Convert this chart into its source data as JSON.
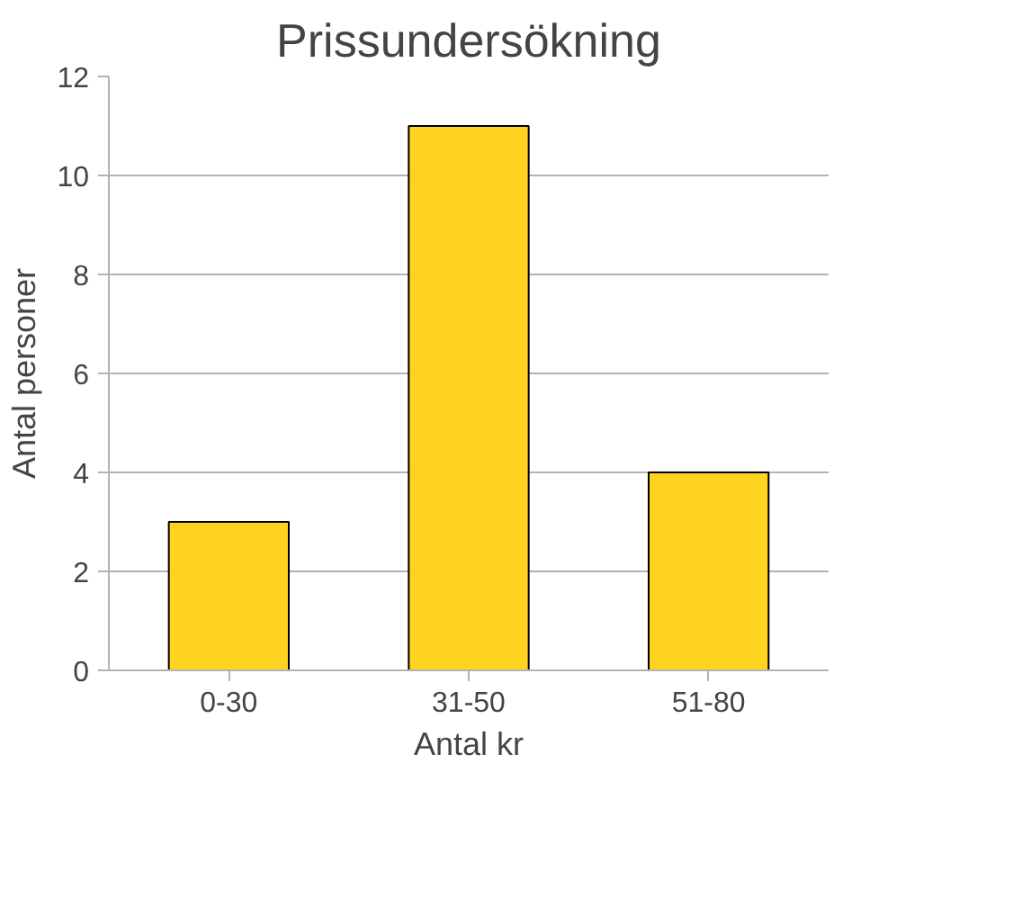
{
  "chart_data": {
    "type": "bar",
    "title": "Prissundersökning",
    "xlabel": "Antal kr",
    "ylabel": "Antal personer",
    "categories": [
      "0-30",
      "31-50",
      "51-80"
    ],
    "series": [
      {
        "color": "#ffd320",
        "values": [
          3,
          11,
          4
        ]
      }
    ],
    "ylim": [
      0,
      12
    ],
    "yticks": [
      0,
      2,
      4,
      6,
      8,
      10,
      12
    ],
    "grid": "y"
  }
}
